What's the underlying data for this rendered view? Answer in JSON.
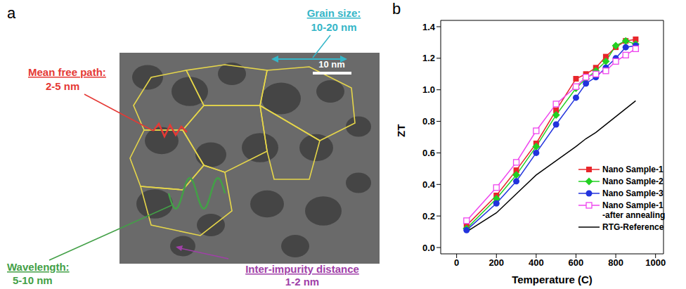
{
  "diagram": {
    "panel_label": "a",
    "scale_bar": "10 nm",
    "annotations": [
      {
        "label": "Mean free path:",
        "value": "2-5 nm",
        "color": "#e53935"
      },
      {
        "label": "Grain size:",
        "value": "10-20 nm",
        "color": "#35b6c8"
      },
      {
        "label": "Wavelength:",
        "value": "5-10 nm",
        "color": "#43a047"
      },
      {
        "label": "Inter-impurity distance",
        "value": "1-2 nm",
        "color": "#a040a8"
      }
    ]
  },
  "chart_data": {
    "panel_label": "b",
    "type": "line",
    "x_label": "Temperature (C)",
    "y_label": "ZT",
    "x": [
      50,
      200,
      300,
      400,
      500,
      600,
      650,
      700,
      750,
      800,
      850,
      900
    ],
    "xlim": [
      -80,
      1040
    ],
    "xticks": [
      0,
      200,
      400,
      600,
      800,
      1000
    ],
    "ylim": [
      -0.04,
      1.44
    ],
    "yticks": [
      {
        "value": 0,
        "label": "0.0"
      },
      0.2,
      0.4,
      0.6,
      0.8,
      {
        "value": 1,
        "label": "1.0"
      },
      1.2,
      1.4
    ],
    "grid": false,
    "legend": "lower right",
    "series": [
      {
        "name": "Nano Sample-1",
        "color": "#e8262b",
        "marker": "square",
        "values": [
          0.14,
          0.33,
          0.49,
          0.66,
          0.87,
          1.07,
          1.1,
          1.14,
          1.21,
          1.27,
          1.31,
          1.32
        ]
      },
      {
        "name": "Nano Sample-2",
        "color": "#22d022",
        "marker": "diamond",
        "values": [
          0.12,
          0.31,
          0.46,
          0.64,
          0.84,
          1.01,
          1.07,
          1.12,
          1.18,
          1.28,
          1.31,
          1.29
        ]
      },
      {
        "name": "Nano Sample-3",
        "color": "#2233dd",
        "marker": "circle",
        "values": [
          0.11,
          0.28,
          0.42,
          0.6,
          0.78,
          0.95,
          1.04,
          1.08,
          1.14,
          1.2,
          1.27,
          1.28
        ]
      },
      {
        "name": "Nano Sample-1\n-after annealing",
        "color": "#ee44ee",
        "marker": "open_square",
        "values": [
          0.17,
          0.38,
          0.54,
          0.74,
          0.91,
          1.02,
          1.08,
          1.1,
          1.12,
          1.18,
          1.22,
          1.26
        ]
      },
      {
        "name": "RTG-Reference",
        "color": "#000000",
        "marker": "none",
        "values": [
          0.1,
          0.22,
          0.34,
          0.46,
          0.55,
          0.64,
          0.69,
          0.73,
          0.78,
          0.83,
          0.88,
          0.93
        ]
      }
    ]
  }
}
